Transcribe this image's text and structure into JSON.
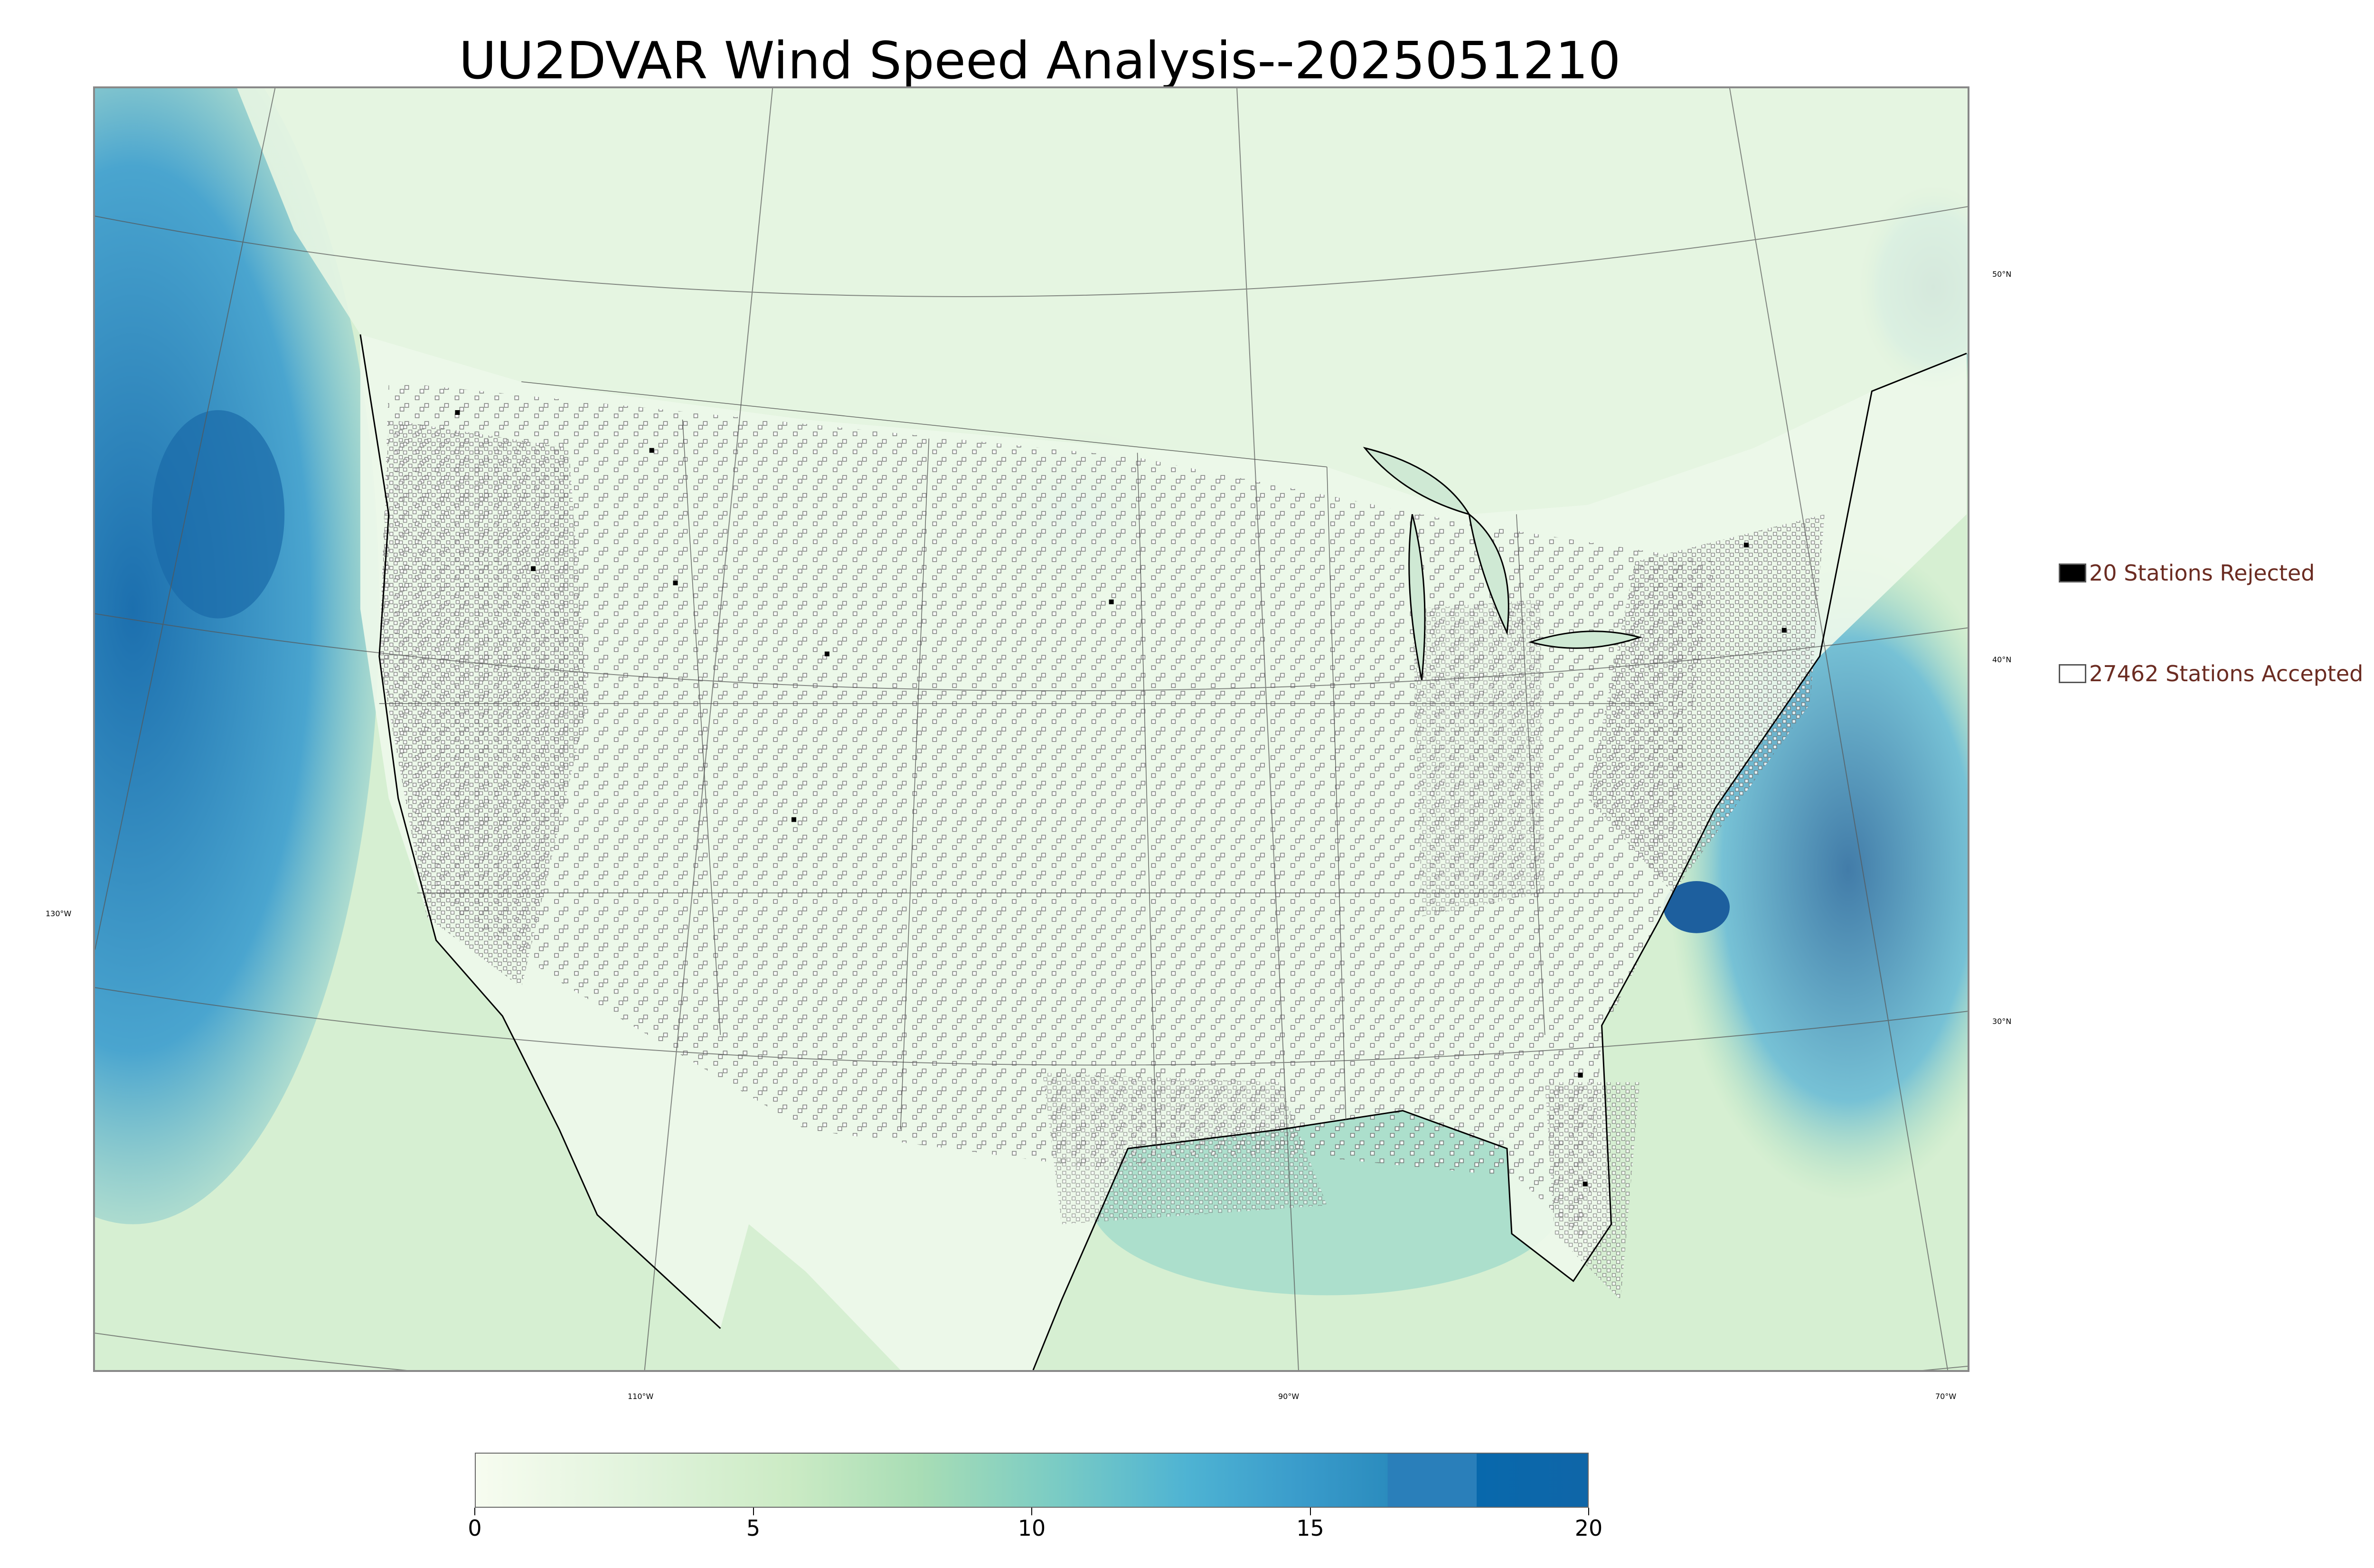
{
  "title": "UU2DVAR Wind Speed Analysis--2025051210",
  "map": {
    "longitude_labels": [
      "130°W",
      "110°W",
      "90°W",
      "70°W"
    ],
    "latitude_labels": [
      "50°N",
      "40°N",
      "30°N"
    ],
    "colors": {
      "ocean_high_wind": "#2b8cc4",
      "land_low_wind": "#eaf7e6",
      "mid_wind": "#a8ddb5",
      "station_marker": "#555555",
      "rejected_marker": "#000000"
    }
  },
  "legend": {
    "rejected": {
      "count": 20,
      "label": "20 Stations Rejected",
      "icon": "filled-square"
    },
    "accepted": {
      "count": 27462,
      "label": "27462 Stations Accepted",
      "icon": "hollow-square"
    }
  },
  "colorbar": {
    "tick_labels": [
      "0",
      "5",
      "10",
      "15",
      "20"
    ],
    "min": 0,
    "max": 20,
    "colors": [
      "#f7fcf0",
      "#e0f3db",
      "#ccebc5",
      "#a8ddb5",
      "#7bccc4",
      "#4eb3d3",
      "#2b8cbe",
      "#0868ac",
      "#1a64a8"
    ]
  }
}
